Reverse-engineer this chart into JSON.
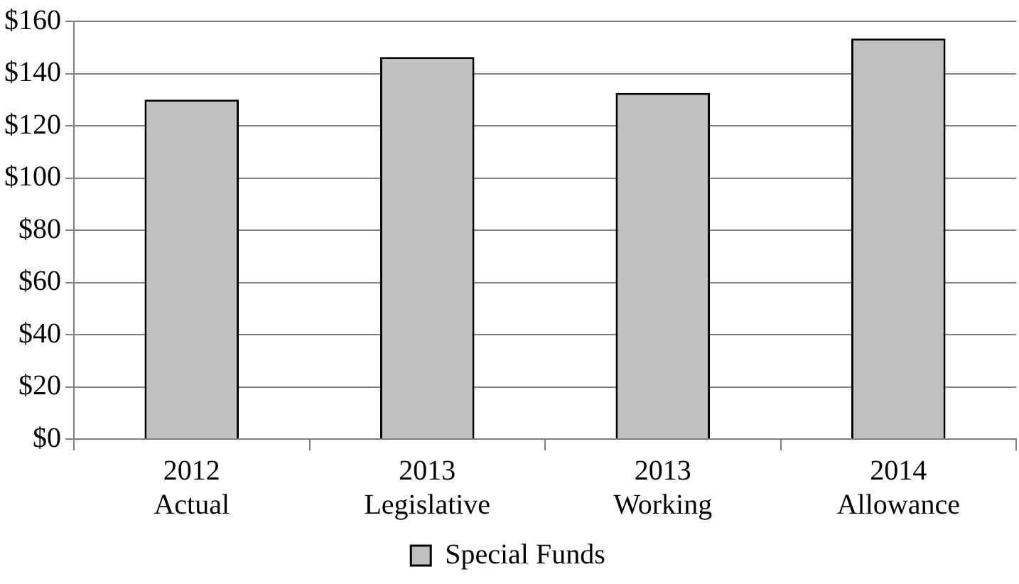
{
  "chart_data": {
    "type": "bar",
    "categories": [
      "2012\nActual",
      "2013\nLegislative",
      "2013\nWorking",
      "2014\nAllowance"
    ],
    "series": [
      {
        "name": "Special Funds",
        "color": "#c0c0c0",
        "values": [
          130,
          146.3,
          132.6,
          153.4
        ]
      }
    ],
    "ylim": [
      0,
      160
    ],
    "yticks": [
      {
        "value": 0,
        "label": "$0"
      },
      {
        "value": 20,
        "label": "$20"
      },
      {
        "value": 40,
        "label": "$40"
      },
      {
        "value": 60,
        "label": "$60"
      },
      {
        "value": 80,
        "label": "$80"
      },
      {
        "value": 100,
        "label": "$100"
      },
      {
        "value": 120,
        "label": "$120"
      },
      {
        "value": 140,
        "label": "$140"
      },
      {
        "value": 160,
        "label": "$160"
      }
    ],
    "grid": "y",
    "legend": "bottom"
  }
}
